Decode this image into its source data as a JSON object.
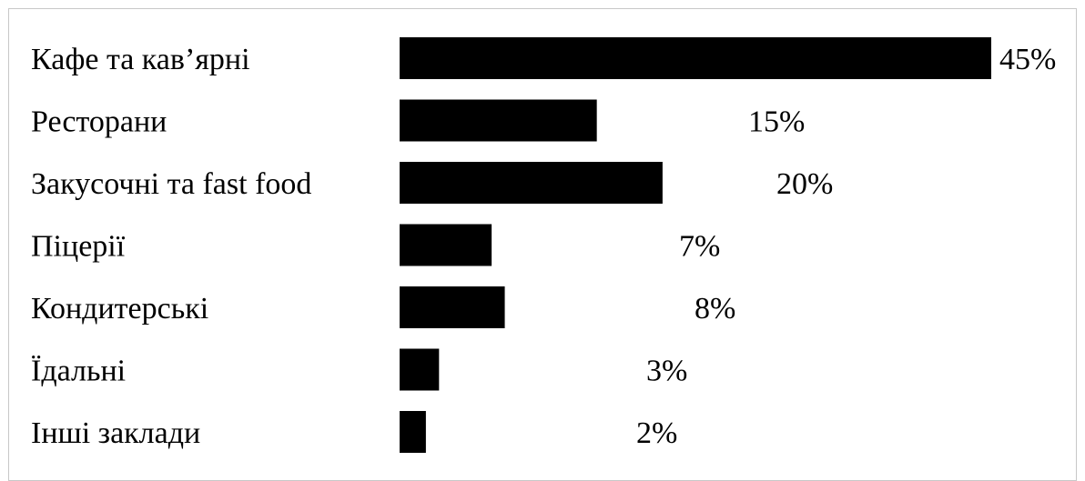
{
  "chart_data": {
    "type": "bar",
    "orientation": "horizontal",
    "title": "",
    "xlabel": "",
    "ylabel": "",
    "categories": [
      "Кафе та кав’ярні",
      "Ресторани",
      "Закусочні та fast food",
      "Піцерії",
      "Кондитерські",
      "Їдальні",
      "Інші заклади"
    ],
    "values": [
      45,
      15,
      20,
      7,
      8,
      3,
      2
    ],
    "value_labels": [
      "45%",
      "15%",
      "20%",
      "7%",
      "8%",
      "3%",
      "2%"
    ],
    "bar_color": "#000000",
    "grid": false,
    "legend": "none"
  }
}
